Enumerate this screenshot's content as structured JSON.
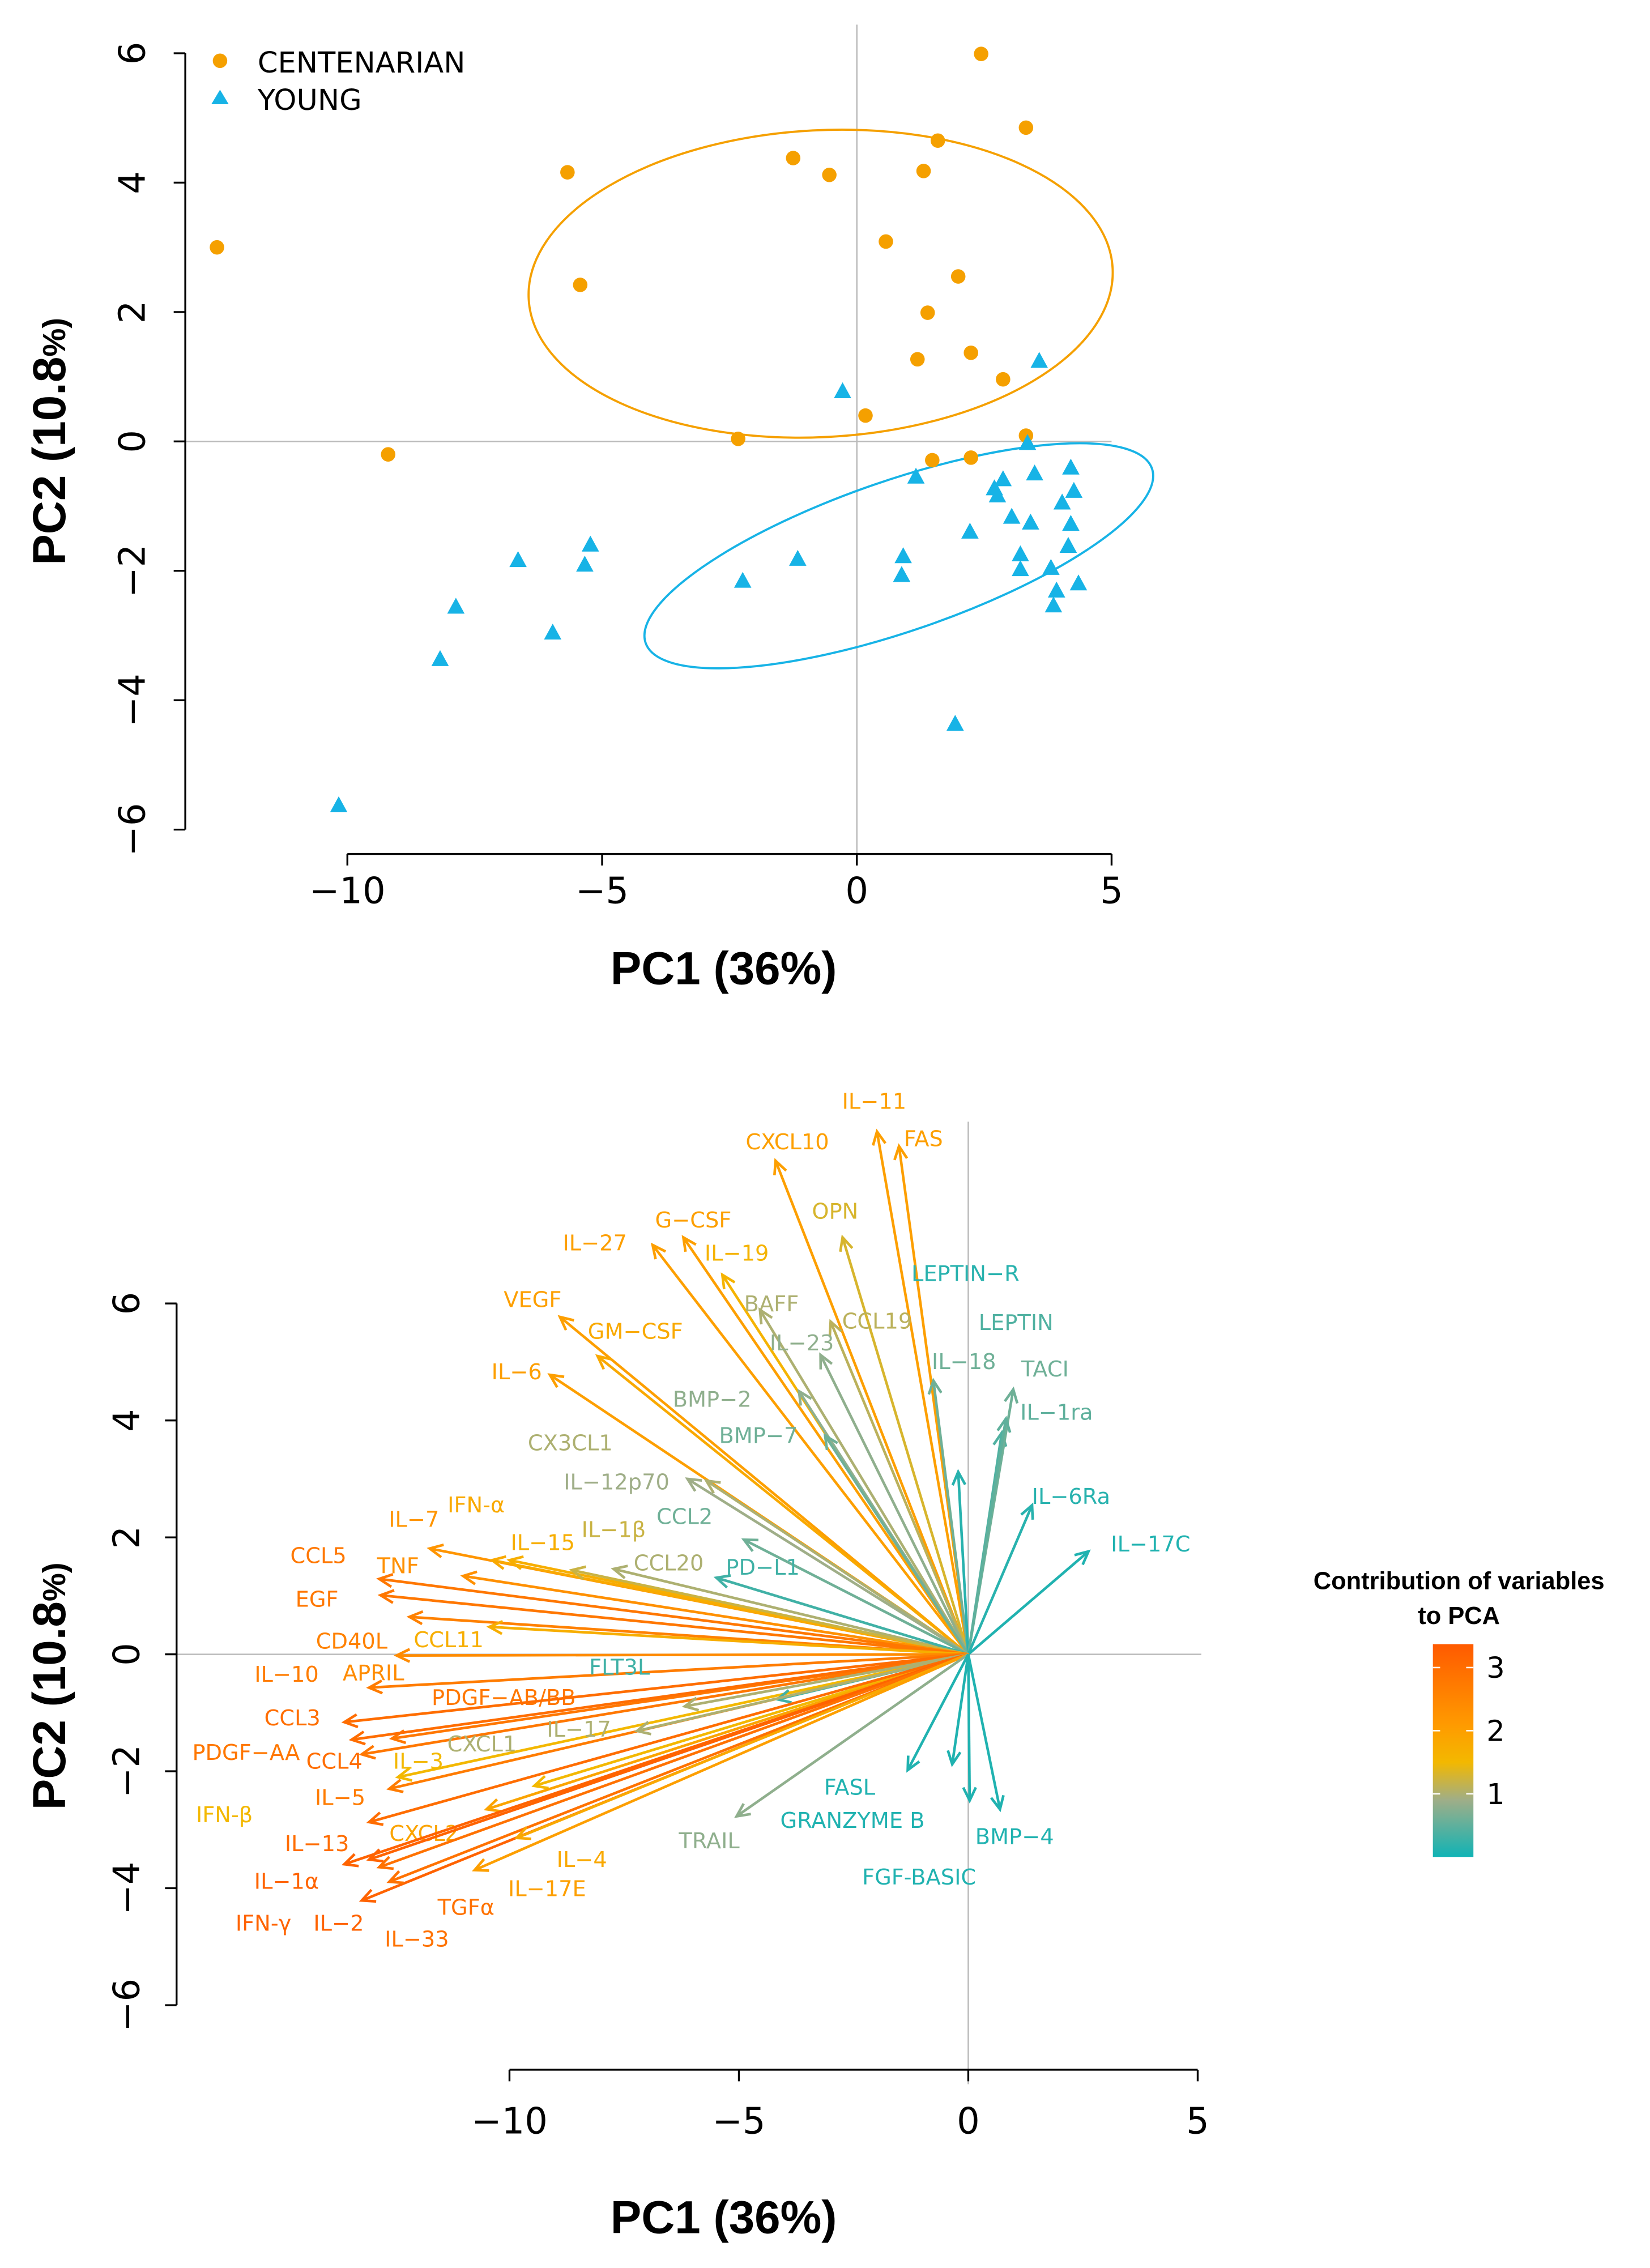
{
  "chart_data": [
    {
      "type": "scatter",
      "title": "",
      "xlabel": "PC1 (36%)",
      "ylabel_main": "PC2 (10.8",
      "ylabel_pct": "%)",
      "xlim": [
        -13,
        5
      ],
      "ylim": [
        -6,
        6
      ],
      "xticks": [
        -10,
        -5,
        0,
        5
      ],
      "xtick_labels": [
        "−10",
        "−5",
        "0",
        "5"
      ],
      "yticks": [
        -6,
        -4,
        -2,
        0,
        2,
        4,
        6
      ],
      "ytick_labels": [
        "−6",
        "−4",
        "−2",
        "0",
        "2",
        "4",
        "6"
      ],
      "legend_position": "top-left",
      "series": [
        {
          "name": "CENTENARIAN",
          "marker": "circle",
          "color": "#f5a000",
          "points": [
            [
              -12.56,
              3.0
            ],
            [
              -9.2,
              -0.2
            ],
            [
              -5.68,
              4.16
            ],
            [
              -5.43,
              2.42
            ],
            [
              -2.33,
              0.04
            ],
            [
              -1.25,
              4.38
            ],
            [
              -0.54,
              4.12
            ],
            [
              0.17,
              0.4
            ],
            [
              0.57,
              3.09
            ],
            [
              1.31,
              4.18
            ],
            [
              1.59,
              4.65
            ],
            [
              1.39,
              1.99
            ],
            [
              1.19,
              1.27
            ],
            [
              1.48,
              -0.29
            ],
            [
              1.99,
              2.55
            ],
            [
              2.24,
              1.37
            ],
            [
              2.24,
              -0.25
            ],
            [
              2.44,
              5.99
            ],
            [
              2.87,
              0.96
            ],
            [
              3.32,
              4.85
            ],
            [
              3.32,
              0.09
            ]
          ]
        },
        {
          "name": "YOUNG",
          "marker": "triangle",
          "color": "#17b3e6",
          "points": [
            [
              -10.17,
              -5.62
            ],
            [
              -8.18,
              -3.36
            ],
            [
              -7.87,
              -2.55
            ],
            [
              -6.65,
              -1.83
            ],
            [
              -5.97,
              -2.95
            ],
            [
              -5.34,
              -1.9
            ],
            [
              -5.23,
              -1.59
            ],
            [
              -2.24,
              -2.15
            ],
            [
              -1.16,
              -1.81
            ],
            [
              -0.28,
              0.78
            ],
            [
              0.91,
              -1.77
            ],
            [
              0.88,
              -2.06
            ],
            [
              1.16,
              -0.54
            ],
            [
              2.22,
              -1.39
            ],
            [
              2.7,
              -0.72
            ],
            [
              2.76,
              -0.83
            ],
            [
              2.87,
              -0.58
            ],
            [
              3.04,
              -1.16
            ],
            [
              3.21,
              -1.74
            ],
            [
              3.21,
              -1.97
            ],
            [
              3.35,
              -0.02
            ],
            [
              3.41,
              -1.25
            ],
            [
              3.49,
              -0.49
            ],
            [
              3.58,
              1.25
            ],
            [
              3.81,
              -1.95
            ],
            [
              3.86,
              -2.53
            ],
            [
              3.92,
              -2.3
            ],
            [
              4.03,
              -0.94
            ],
            [
              4.15,
              -1.61
            ],
            [
              4.2,
              -0.4
            ],
            [
              4.2,
              -1.27
            ],
            [
              4.26,
              -0.76
            ],
            [
              4.35,
              -2.19
            ],
            [
              1.93,
              -4.36
            ]
          ]
        }
      ]
    },
    {
      "type": "biplot",
      "xlabel": "PC1 (36%)",
      "ylabel_main": "PC2 (10.8",
      "ylabel_pct": "%)",
      "xlim": [
        -10,
        5
      ],
      "ylim": [
        -6,
        6
      ],
      "xticks": [
        -10,
        -5,
        0,
        5
      ],
      "xtick_labels": [
        "−10",
        "−5",
        "0",
        "5"
      ],
      "yticks": [
        -6,
        -4,
        -2,
        0,
        2,
        4,
        6
      ],
      "ytick_labels": [
        "−6",
        "−4",
        "−2",
        "0",
        "2",
        "4",
        "6"
      ],
      "colorbar": {
        "title_line1": "Contribution of variables",
        "title_line2": "to PCA",
        "range": [
          0,
          3.37
        ],
        "ticks": [
          1,
          2,
          3
        ],
        "tick_labels": [
          "1",
          "2",
          "3"
        ],
        "colors": [
          "#10b3b5",
          "#9fae88",
          "#f3b800",
          "#ff9a00",
          "#ff5a00"
        ]
      },
      "variables": [
        {
          "name": "IL−11",
          "pc1": -1.99,
          "pc2": 8.94,
          "contrib": 2.0
        },
        {
          "name": "FAS",
          "pc1": -1.51,
          "pc2": 8.69,
          "contrib": 2.0
        },
        {
          "name": "CXCL10",
          "pc1": -4.2,
          "pc2": 8.44,
          "contrib": 2.0
        },
        {
          "name": "OPN",
          "pc1": -2.74,
          "pc2": 7.13,
          "contrib": 1.3
        },
        {
          "name": "G−CSF",
          "pc1": -6.21,
          "pc2": 7.13,
          "contrib": 2.0
        },
        {
          "name": "IL−27",
          "pc1": -6.88,
          "pc2": 7.0,
          "contrib": 2.0
        },
        {
          "name": "IL−19",
          "pc1": -5.36,
          "pc2": 6.49,
          "contrib": 1.6
        },
        {
          "name": "BAFF",
          "pc1": -4.54,
          "pc2": 5.89,
          "contrib": 1.0
        },
        {
          "name": "CCL19",
          "pc1": -3.0,
          "pc2": 5.69,
          "contrib": 1.1
        },
        {
          "name": "IL−23",
          "pc1": -3.22,
          "pc2": 5.12,
          "contrib": 0.8
        },
        {
          "name": "VEGF",
          "pc1": -8.9,
          "pc2": 5.77,
          "contrib": 2.0
        },
        {
          "name": "GM−CSF",
          "pc1": -8.08,
          "pc2": 5.1,
          "contrib": 1.8
        },
        {
          "name": "IL−6",
          "pc1": -9.12,
          "pc2": 4.78,
          "contrib": 2.0
        },
        {
          "name": "BMP−2",
          "pc1": -3.69,
          "pc2": 4.5,
          "contrib": 0.8
        },
        {
          "name": "BMP−7",
          "pc1": -3.12,
          "pc2": 3.74,
          "contrib": 0.6
        },
        {
          "name": "IL−18",
          "pc1": -0.76,
          "pc2": 4.68,
          "contrib": 0.6
        },
        {
          "name": "LEPTIN−R",
          "pc1": -0.22,
          "pc2": 3.12,
          "contrib": 0.15
        },
        {
          "name": "LEPTIN",
          "pc1": 0.73,
          "pc2": 3.79,
          "contrib": 0.4
        },
        {
          "name": "TACI",
          "pc1": 0.98,
          "pc2": 4.53,
          "contrib": 0.6
        },
        {
          "name": "IL−1ra",
          "pc1": 0.82,
          "pc2": 4.03,
          "contrib": 0.5
        },
        {
          "name": "IL−6Ra",
          "pc1": 1.39,
          "pc2": 2.55,
          "contrib": 0.15
        },
        {
          "name": "IL−17C",
          "pc1": 2.62,
          "pc2": 1.76,
          "contrib": 0.1
        },
        {
          "name": "CX3CL1",
          "pc1": -5.71,
          "pc2": 2.97,
          "contrib": 1.0
        },
        {
          "name": "IL−12p70",
          "pc1": -6.12,
          "pc2": 3.0,
          "contrib": 0.9
        },
        {
          "name": "CCL2",
          "pc1": -4.89,
          "pc2": 1.96,
          "contrib": 0.6
        },
        {
          "name": "CCL20",
          "pc1": -7.73,
          "pc2": 1.46,
          "contrib": 1.0
        },
        {
          "name": "PD−L1",
          "pc1": -5.49,
          "pc2": 1.31,
          "contrib": 0.3
        },
        {
          "name": "IL−7",
          "pc1": -11.74,
          "pc2": 1.81,
          "contrib": 2.2
        },
        {
          "name": "IFN-α",
          "pc1": -10.38,
          "pc2": 1.61,
          "contrib": 1.8
        },
        {
          "name": "IL−15",
          "pc1": -10.0,
          "pc2": 1.61,
          "contrib": 1.7
        },
        {
          "name": "IL−1β",
          "pc1": -8.64,
          "pc2": 1.44,
          "contrib": 1.2
        },
        {
          "name": "TNF",
          "pc1": -11.01,
          "pc2": 1.34,
          "contrib": 2.3
        },
        {
          "name": "CCL5",
          "pc1": -12.84,
          "pc2": 1.29,
          "contrib": 2.8
        },
        {
          "name": "EGF",
          "pc1": -12.81,
          "pc2": 1.01,
          "contrib": 2.8
        },
        {
          "name": "CD40L",
          "pc1": -12.18,
          "pc2": 0.64,
          "contrib": 2.6
        },
        {
          "name": "CCL11",
          "pc1": -10.44,
          "pc2": 0.47,
          "contrib": 1.7
        },
        {
          "name": "APRIL",
          "pc1": -12.46,
          "pc2": -0.02,
          "contrib": 2.4
        },
        {
          "name": "IL−10",
          "pc1": -13.06,
          "pc2": -0.57,
          "contrib": 2.7
        },
        {
          "name": "PDGF−AB/BB",
          "pc1": -12.56,
          "pc2": -1.44,
          "contrib": 2.8
        },
        {
          "name": "CCL3",
          "pc1": -13.6,
          "pc2": -1.16,
          "contrib": 3.0
        },
        {
          "name": "CCL4",
          "pc1": -13.44,
          "pc2": -1.46,
          "contrib": 3.0
        },
        {
          "name": "PDGF−AA",
          "pc1": -13.22,
          "pc2": -1.71,
          "contrib": 2.8
        },
        {
          "name": "IL−3",
          "pc1": -12.43,
          "pc2": -2.1,
          "contrib": 1.5
        },
        {
          "name": "IL−5",
          "pc1": -12.62,
          "pc2": -2.3,
          "contrib": 2.7
        },
        {
          "name": "CXCL1",
          "pc1": -6.18,
          "pc2": -0.89,
          "contrib": 1.0
        },
        {
          "name": "FLT3L",
          "pc1": -4.16,
          "pc2": -0.77,
          "contrib": 0.3
        },
        {
          "name": "IL−17",
          "pc1": -7.22,
          "pc2": -1.31,
          "contrib": 1.0
        },
        {
          "name": "IFN-β",
          "pc1": -9.46,
          "pc2": -2.25,
          "contrib": 1.5
        },
        {
          "name": "CXCL2",
          "pc1": -10.5,
          "pc2": -2.65,
          "contrib": 1.9
        },
        {
          "name": "IL−13",
          "pc1": -13.06,
          "pc2": -2.87,
          "contrib": 3.0
        },
        {
          "name": "IL−1α",
          "pc1": -13.6,
          "pc2": -3.59,
          "contrib": 3.2
        },
        {
          "name": "IFN-γ",
          "pc1": -13.06,
          "pc2": -3.51,
          "contrib": 3.2
        },
        {
          "name": "IL−2",
          "pc1": -13.22,
          "pc2": -4.21,
          "contrib": 3.2
        },
        {
          "name": "IL−33",
          "pc1": -12.84,
          "pc2": -3.64,
          "contrib": 2.9
        },
        {
          "name": "TGFα",
          "pc1": -12.62,
          "pc2": -3.89,
          "contrib": 2.9
        },
        {
          "name": "IL−4",
          "pc1": -9.84,
          "pc2": -3.14,
          "contrib": 1.8
        },
        {
          "name": "IL−17E",
          "pc1": -10.76,
          "pc2": -3.69,
          "contrib": 2.0
        },
        {
          "name": "TRAIL",
          "pc1": -5.05,
          "pc2": -2.77,
          "contrib": 0.8
        },
        {
          "name": "FASL",
          "pc1": -1.32,
          "pc2": -1.98,
          "contrib": 0.1
        },
        {
          "name": "GRANZYME B",
          "pc1": -0.35,
          "pc2": -1.88,
          "contrib": 0.1
        },
        {
          "name": "FGF-BASIC",
          "pc1": 0.03,
          "pc2": -2.5,
          "contrib": 0.1
        },
        {
          "name": "BMP−4",
          "pc1": 0.69,
          "pc2": -2.65,
          "contrib": 0.1
        }
      ]
    }
  ]
}
